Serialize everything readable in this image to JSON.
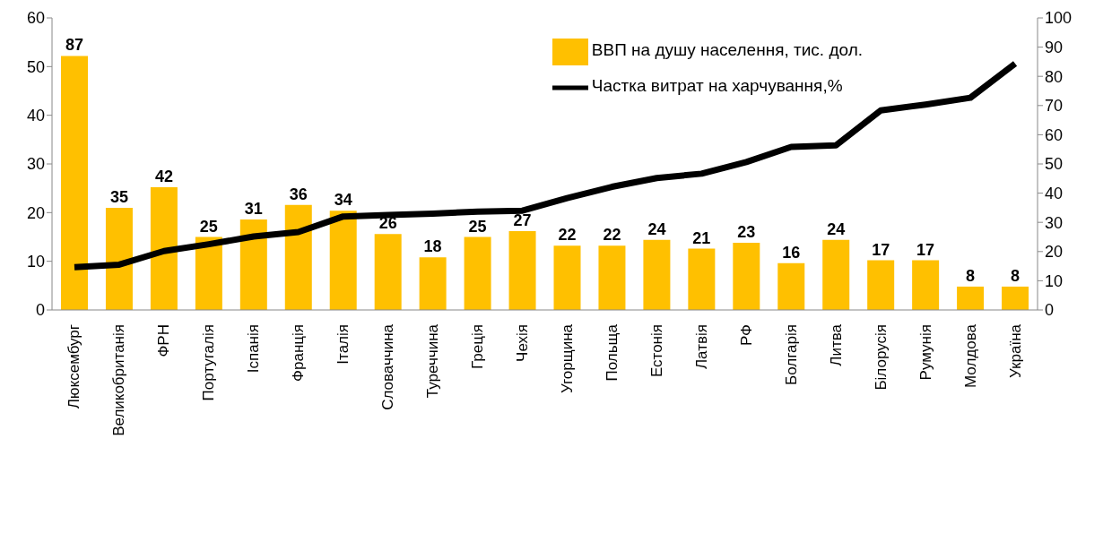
{
  "chart_data": {
    "type": "bar",
    "categories": [
      "Люксембург",
      "Великобританія",
      "ФРН",
      "Португалія",
      "Іспанія",
      "Франція",
      "Італія",
      "Словаччина",
      "Туреччина",
      "Греція",
      "Чехія",
      "Угорщина",
      "Польща",
      "Естонія",
      "Латвія",
      "РФ",
      "Болгарія",
      "Литва",
      "Білорусія",
      "Румунія",
      "Молдова",
      "Україна"
    ],
    "series": [
      {
        "name": "ВВП на душу населення, тис. дол.",
        "axis": "y2",
        "color": "#ffc000",
        "values": [
          87,
          35,
          42,
          25,
          31,
          36,
          34,
          26,
          18,
          25,
          27,
          22,
          22,
          24,
          21,
          23,
          16,
          24,
          17,
          17,
          8,
          8
        ],
        "value_labels": [
          "87",
          "35",
          "42",
          "25",
          "31",
          "36",
          "34",
          "26",
          "18",
          "25",
          "27",
          "22",
          "22",
          "24",
          "21",
          "23",
          "16",
          "24",
          "17",
          "17",
          "8",
          "8"
        ]
      },
      {
        "name": "Частка витрат на харчування,%",
        "type": "line",
        "axis": "y",
        "color": "#000000",
        "values": [
          8.8,
          9.3,
          12.1,
          13.5,
          15.1,
          16,
          19.2,
          19.5,
          19.8,
          20.2,
          20.4,
          23,
          25.3,
          27.1,
          28,
          30.4,
          33.5,
          33.8,
          41,
          42.2,
          43.6,
          50.6
        ]
      }
    ],
    "ylim": [
      0,
      60
    ],
    "yticks": [
      0,
      10,
      20,
      30,
      40,
      50,
      60
    ],
    "y2lim": [
      0,
      100
    ],
    "y2ticks": [
      0,
      10,
      20,
      30,
      40,
      50,
      60,
      70,
      80,
      90,
      100
    ],
    "grid": false,
    "legend": "top right",
    "marker": "none",
    "line_style": "solid"
  }
}
